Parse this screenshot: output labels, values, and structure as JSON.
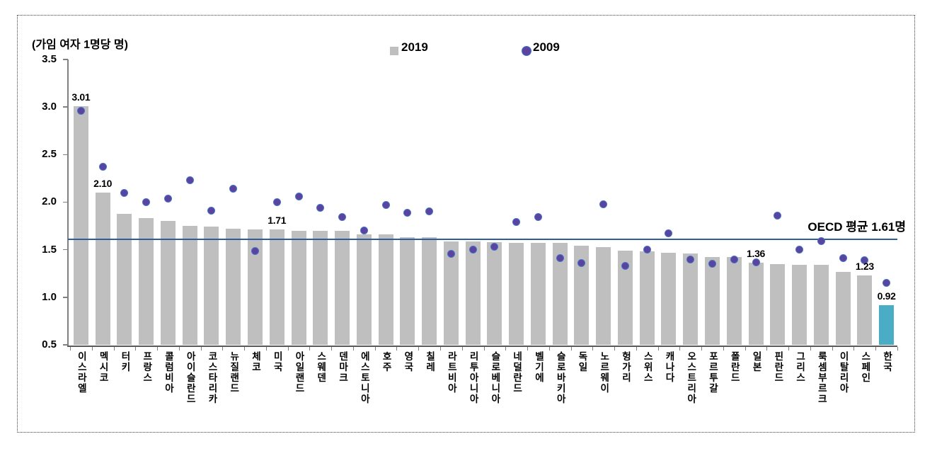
{
  "chart_data": {
    "type": "bar",
    "title": "",
    "ylabel_unit": "(가임 여자 1명당 명)",
    "xlabel": "",
    "categories": [
      "이스라엘",
      "멕시코",
      "터키",
      "프랑스",
      "콜럼비아",
      "아이슬란드",
      "코스타리카",
      "뉴질랜드",
      "체코",
      "미국",
      "아일랜드",
      "스웨덴",
      "덴마크",
      "에스토니아",
      "호주",
      "영국",
      "칠레",
      "라트비아",
      "리투아니아",
      "슬로베니아",
      "네덜란드",
      "벨기에",
      "슬로바키아",
      "독일",
      "노르웨이",
      "헝가리",
      "스위스",
      "캐나다",
      "오스트리아",
      "포르투갈",
      "폴란드",
      "일본",
      "핀란드",
      "그리스",
      "룩셈부르크",
      "이탈리아",
      "스페인",
      "한국"
    ],
    "series": [
      {
        "name": "2019",
        "type": "bar",
        "values": [
          3.01,
          2.1,
          1.88,
          1.83,
          1.8,
          1.75,
          1.74,
          1.72,
          1.71,
          1.71,
          1.7,
          1.7,
          1.7,
          1.66,
          1.66,
          1.63,
          1.63,
          1.59,
          1.59,
          1.58,
          1.57,
          1.57,
          1.57,
          1.54,
          1.53,
          1.49,
          1.48,
          1.47,
          1.46,
          1.42,
          1.42,
          1.36,
          1.35,
          1.34,
          1.34,
          1.27,
          1.23,
          0.92
        ]
      },
      {
        "name": "2009",
        "type": "scatter",
        "values": [
          2.96,
          2.37,
          2.1,
          2.0,
          2.04,
          2.23,
          1.91,
          2.14,
          1.49,
          2.0,
          2.06,
          1.94,
          1.84,
          1.7,
          1.97,
          1.89,
          1.9,
          1.46,
          1.5,
          1.53,
          1.79,
          1.84,
          1.41,
          1.36,
          1.98,
          1.33,
          1.5,
          1.67,
          1.4,
          1.35,
          1.4,
          1.37,
          1.86,
          1.5,
          1.59,
          1.41,
          1.39,
          1.15
        ]
      }
    ],
    "data_labels": [
      {
        "category_index": 0,
        "text": "3.01"
      },
      {
        "category_index": 1,
        "text": "2.10"
      },
      {
        "category_index": 9,
        "text": "1.71"
      },
      {
        "category_index": 31,
        "text": "1.36"
      },
      {
        "category_index": 36,
        "text": "1.23"
      },
      {
        "category_index": 37,
        "text": "0.92"
      }
    ],
    "avg_line": {
      "value": 1.61,
      "label": "OECD 평균 1.61명"
    },
    "highlight_index": 37,
    "highlight_category": "한국",
    "ylim": [
      0.5,
      3.5
    ],
    "yticks": [
      "3.5",
      "3.0",
      "2.5",
      "2.0",
      "1.5",
      "1.0",
      "0.5"
    ],
    "legend": [
      {
        "label": "2019",
        "marker": "square"
      },
      {
        "label": "2009",
        "marker": "circle"
      }
    ],
    "legend_position": "top",
    "grid": false
  },
  "colors": {
    "bar": "#BFBFBF",
    "bar_highlight": "#4BACC6",
    "dot_fill": "#5B44A0",
    "dot_edge": "#4472C4",
    "avg_line": "#2E5D9C",
    "axis": "#808080",
    "x_axis": "#595959",
    "text": "#000000"
  }
}
